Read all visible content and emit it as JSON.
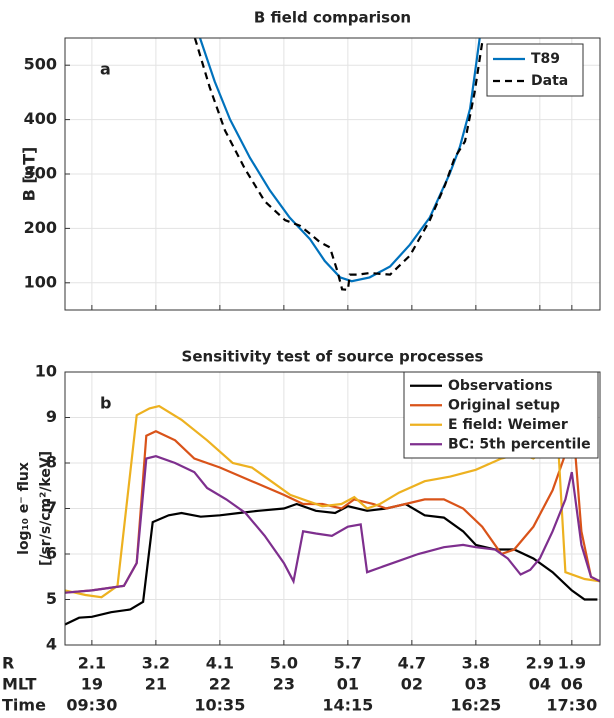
{
  "chart_data": [
    {
      "type": "line",
      "title": "B field comparison",
      "y_label": "B [nT]",
      "panel_label": "a",
      "xlim": [
        -0.42,
        7.94
      ],
      "xticks": [
        0,
        1,
        2,
        3,
        4,
        5,
        6,
        7,
        7.5
      ],
      "ylim": [
        50,
        550
      ],
      "yticks": [
        100,
        200,
        300,
        400,
        500
      ],
      "grid": true,
      "legend": "upper right",
      "series": [
        {
          "name": "T89",
          "color": "#0072bd",
          "dash": false,
          "x": [
            1.69,
            1.92,
            2.16,
            2.47,
            2.78,
            3.09,
            3.41,
            3.64,
            3.88,
            4.06,
            4.34,
            4.66,
            4.97,
            5.28,
            5.59,
            5.75,
            5.91,
            6.06
          ],
          "values": [
            550,
            470,
            400,
            330,
            270,
            220,
            180,
            140,
            110,
            103,
            110,
            130,
            170,
            220,
            300,
            350,
            420,
            550
          ]
        },
        {
          "name": "Data",
          "color": "#000000",
          "dash": true,
          "x": [
            1.61,
            1.84,
            2.08,
            2.39,
            2.7,
            3.02,
            3.25,
            3.41,
            3.56,
            3.72,
            3.84,
            3.91,
            4.0,
            4.03,
            4.16,
            4.34,
            4.66,
            4.97,
            5.28,
            5.52,
            5.67,
            5.83,
            5.98,
            6.11
          ],
          "values": [
            550,
            460,
            380,
            310,
            250,
            215,
            205,
            190,
            175,
            165,
            120,
            88,
            87,
            115,
            115,
            118,
            115,
            150,
            215,
            280,
            330,
            360,
            450,
            550
          ]
        }
      ]
    },
    {
      "type": "line",
      "title": "Sensitivity test of source processes",
      "y_label": [
        "log₁₀ e⁻ flux",
        "[/sr/s/cm²/keV]"
      ],
      "panel_label": "b",
      "xlim": [
        -0.42,
        7.94
      ],
      "xticks": [
        0,
        1,
        2,
        3,
        4,
        5,
        6,
        7,
        7.5
      ],
      "ylim": [
        4,
        10
      ],
      "yticks": [
        4,
        5,
        6,
        7,
        8,
        9,
        10
      ],
      "grid": true,
      "legend": "upper right",
      "x_tick_rows": [
        {
          "name": "R",
          "labels": [
            "2.1",
            "3.2",
            "4.1",
            "5.0",
            "5.7",
            "4.7",
            "3.8",
            "2.9",
            "1.9"
          ]
        },
        {
          "name": "MLT",
          "labels": [
            "19",
            "21",
            "22",
            "23",
            "01",
            "02",
            "03",
            "04",
            "06"
          ]
        },
        {
          "name": "Time",
          "labels": [
            "09:30",
            null,
            "10:35",
            null,
            "14:15",
            null,
            "16:25",
            null,
            "17:30"
          ]
        }
      ],
      "series": [
        {
          "name": "Observations",
          "color": "#000000",
          "x": [
            -0.42,
            -0.2,
            0,
            0.3,
            0.6,
            0.8,
            0.95,
            1.2,
            1.4,
            1.7,
            2.0,
            2.3,
            2.6,
            3.0,
            3.2,
            3.5,
            3.8,
            4.0,
            4.3,
            4.6,
            4.9,
            5.2,
            5.5,
            5.8,
            6.0,
            6.3,
            6.6,
            6.9,
            7.2,
            7.5,
            7.7,
            7.9
          ],
          "values": [
            4.45,
            4.6,
            4.62,
            4.72,
            4.78,
            4.95,
            6.7,
            6.85,
            6.9,
            6.82,
            6.85,
            6.9,
            6.95,
            7.0,
            7.1,
            6.95,
            6.9,
            7.05,
            6.95,
            7.0,
            7.1,
            6.85,
            6.8,
            6.5,
            6.2,
            6.1,
            6.1,
            5.9,
            5.6,
            5.2,
            5.0,
            5.0
          ]
        },
        {
          "name": "Original setup",
          "color": "#d95319",
          "x": [
            -0.42,
            0,
            0.5,
            0.7,
            0.85,
            1.0,
            1.3,
            1.6,
            2.0,
            2.5,
            3.0,
            3.3,
            3.6,
            3.9,
            4.1,
            4.4,
            4.6,
            4.9,
            5.2,
            5.5,
            5.8,
            6.1,
            6.4,
            6.6,
            6.9,
            7.2,
            7.4,
            7.55,
            7.65,
            7.8,
            7.94
          ],
          "values": [
            5.15,
            5.2,
            5.3,
            5.8,
            8.6,
            8.7,
            8.5,
            8.1,
            7.9,
            7.6,
            7.3,
            7.1,
            7.1,
            7.0,
            7.2,
            7.1,
            7.0,
            7.1,
            7.2,
            7.2,
            7.0,
            6.6,
            6.0,
            6.1,
            6.6,
            7.4,
            8.2,
            8.3,
            6.5,
            5.5,
            5.4
          ]
        },
        {
          "name": "E field: Weimer",
          "color": "#edb120",
          "x": [
            -0.42,
            -0.1,
            0.15,
            0.4,
            0.7,
            0.9,
            1.05,
            1.4,
            1.8,
            2.2,
            2.5,
            2.8,
            3.1,
            3.3,
            3.6,
            3.9,
            4.1,
            4.3,
            4.5,
            4.8,
            5.2,
            5.6,
            6.0,
            6.4,
            6.7,
            6.9,
            7.1,
            7.25,
            7.4,
            7.7,
            7.94
          ],
          "values": [
            5.2,
            5.1,
            5.05,
            5.3,
            9.05,
            9.2,
            9.25,
            8.95,
            8.5,
            8.0,
            7.9,
            7.6,
            7.3,
            7.2,
            7.05,
            7.1,
            7.25,
            7.0,
            7.1,
            7.35,
            7.6,
            7.7,
            7.85,
            8.1,
            8.2,
            8.1,
            8.3,
            9.3,
            5.6,
            5.45,
            5.4
          ]
        },
        {
          "name": "BC: 5th percentile",
          "color": "#7e2f8e",
          "x": [
            -0.42,
            0,
            0.5,
            0.7,
            0.85,
            1.0,
            1.3,
            1.6,
            1.8,
            2.1,
            2.4,
            2.7,
            3.0,
            3.15,
            3.3,
            3.5,
            3.75,
            4.0,
            4.2,
            4.3,
            4.5,
            4.8,
            5.1,
            5.5,
            5.8,
            6.0,
            6.3,
            6.5,
            6.7,
            6.85,
            7.0,
            7.2,
            7.4,
            7.5,
            7.65,
            7.8,
            7.94
          ],
          "values": [
            5.15,
            5.2,
            5.3,
            5.8,
            8.1,
            8.15,
            8.0,
            7.8,
            7.45,
            7.2,
            6.9,
            6.4,
            5.8,
            5.4,
            6.5,
            6.45,
            6.4,
            6.6,
            6.65,
            5.6,
            5.7,
            5.85,
            6.0,
            6.15,
            6.2,
            6.15,
            6.1,
            5.9,
            5.55,
            5.65,
            5.9,
            6.5,
            7.2,
            7.8,
            6.2,
            5.5,
            5.4
          ]
        }
      ]
    }
  ]
}
